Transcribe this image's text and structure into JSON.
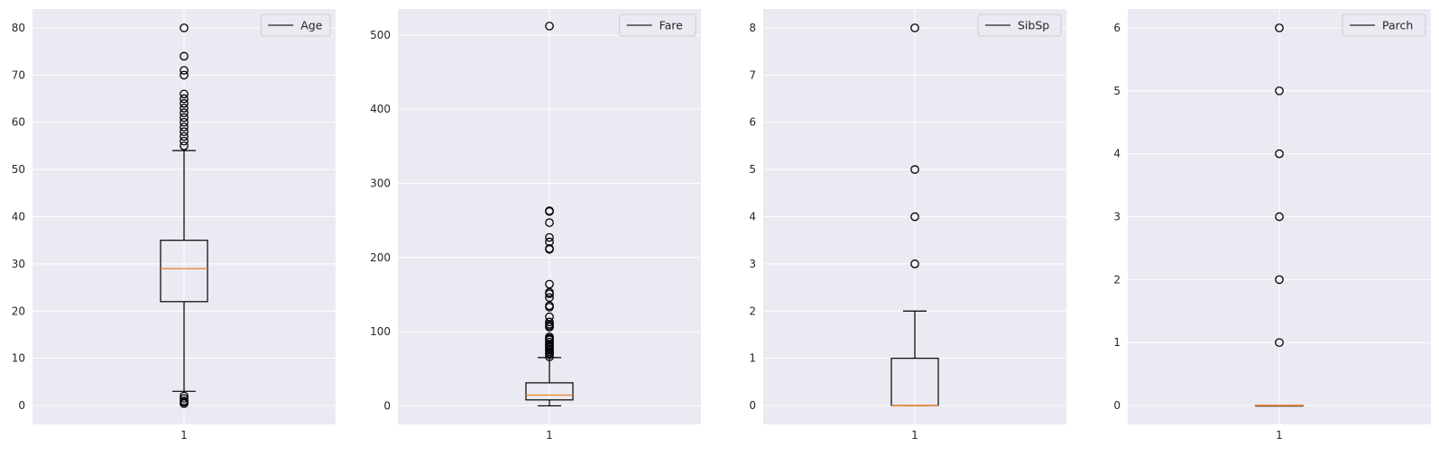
{
  "chart_data": [
    {
      "type": "box",
      "legend": "Age",
      "legend_position": "top-right",
      "category": "1",
      "ylim": [
        -4,
        84
      ],
      "yticks": [
        0,
        10,
        20,
        30,
        40,
        50,
        60,
        70,
        80
      ],
      "grid": true,
      "box": {
        "q1": 22,
        "median": 29,
        "q3": 35,
        "whisker_low": 3,
        "whisker_high": 54
      },
      "outliers": [
        0.4,
        0.7,
        1,
        1.5,
        2,
        55,
        56,
        57,
        58,
        59,
        60,
        61,
        62,
        63,
        64,
        65,
        66,
        70,
        71,
        74,
        80
      ]
    },
    {
      "type": "box",
      "legend": "Fare",
      "legend_position": "top-right",
      "category": "1",
      "ylim": [
        -25,
        535
      ],
      "yticks": [
        0,
        100,
        200,
        300,
        400,
        500
      ],
      "grid": true,
      "box": {
        "q1": 8,
        "median": 14.5,
        "q3": 31,
        "whisker_low": 0,
        "whisker_high": 65
      },
      "outliers": [
        66,
        69,
        71,
        73,
        75,
        77,
        79,
        80,
        82,
        83,
        86,
        89,
        90,
        91,
        93,
        106,
        108,
        110,
        113,
        120,
        133,
        135,
        146,
        151,
        153,
        164,
        211,
        212,
        221,
        227,
        247,
        262,
        263,
        512
      ]
    },
    {
      "type": "box",
      "legend": "SibSp",
      "legend_position": "top-right",
      "category": "1",
      "ylim": [
        -0.4,
        8.4
      ],
      "yticks": [
        0,
        1,
        2,
        3,
        4,
        5,
        6,
        7,
        8
      ],
      "grid": true,
      "box": {
        "q1": 0,
        "median": 0,
        "q3": 1,
        "whisker_low": 0,
        "whisker_high": 2
      },
      "outliers": [
        3,
        4,
        5,
        8
      ]
    },
    {
      "type": "box",
      "legend": "Parch",
      "legend_position": "top-right",
      "category": "1",
      "ylim": [
        -0.3,
        6.3
      ],
      "yticks": [
        0,
        1,
        2,
        3,
        4,
        5,
        6
      ],
      "grid": true,
      "box": {
        "q1": 0,
        "median": 0,
        "q3": 0,
        "whisker_low": 0,
        "whisker_high": 0
      },
      "outliers": [
        1,
        2,
        3,
        4,
        5,
        6
      ]
    }
  ]
}
